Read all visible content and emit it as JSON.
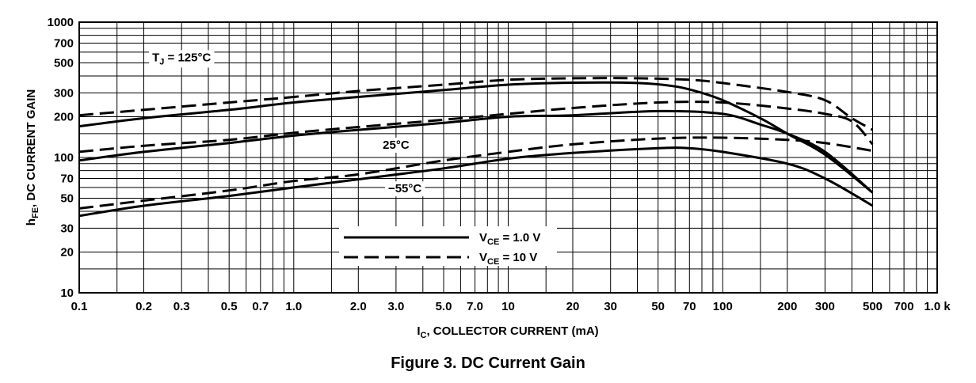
{
  "caption": "Figure 3. DC Current Gain",
  "chart_data": {
    "type": "line",
    "title": "",
    "x_scale": "log",
    "y_scale": "log",
    "xlim": [
      0.1,
      1000
    ],
    "ylim": [
      10,
      1000
    ],
    "grid": true,
    "xlabel": {
      "main": "I",
      "sub": "C",
      "rest": ", COLLECTOR CURRENT (mA)"
    },
    "ylabel": {
      "main": "h",
      "sub": "FE",
      "rest": ", DC CURRENT GAIN"
    },
    "x_ticks": [
      {
        "value": 0.1,
        "label": "0.1"
      },
      {
        "value": 0.2,
        "label": "0.2"
      },
      {
        "value": 0.3,
        "label": "0.3"
      },
      {
        "value": 0.5,
        "label": "0.5"
      },
      {
        "value": 0.7,
        "label": "0.7"
      },
      {
        "value": 1,
        "label": "1.0"
      },
      {
        "value": 2,
        "label": "2.0"
      },
      {
        "value": 3,
        "label": "3.0"
      },
      {
        "value": 5,
        "label": "5.0"
      },
      {
        "value": 7,
        "label": "7.0"
      },
      {
        "value": 10,
        "label": "10"
      },
      {
        "value": 20,
        "label": "20"
      },
      {
        "value": 30,
        "label": "30"
      },
      {
        "value": 50,
        "label": "50"
      },
      {
        "value": 70,
        "label": "70"
      },
      {
        "value": 100,
        "label": "100"
      },
      {
        "value": 200,
        "label": "200"
      },
      {
        "value": 300,
        "label": "300"
      },
      {
        "value": 500,
        "label": "500"
      },
      {
        "value": 700,
        "label": "700"
      },
      {
        "value": 1000,
        "label": "1.0 k"
      }
    ],
    "y_ticks": [
      {
        "value": 10,
        "label": "10"
      },
      {
        "value": 20,
        "label": "20"
      },
      {
        "value": 30,
        "label": "30"
      },
      {
        "value": 50,
        "label": "50"
      },
      {
        "value": 70,
        "label": "70"
      },
      {
        "value": 100,
        "label": "100"
      },
      {
        "value": 200,
        "label": "200"
      },
      {
        "value": 300,
        "label": "300"
      },
      {
        "value": 500,
        "label": "500"
      },
      {
        "value": 700,
        "label": "700"
      },
      {
        "value": 1000,
        "label": "1000"
      }
    ],
    "legend": {
      "placement": "bottom-center",
      "entries": [
        {
          "main": "V",
          "sub": "CE",
          "rest": " = 1.0 V",
          "style": "solid"
        },
        {
          "main": "V",
          "sub": "CE",
          "rest": " = 10 V",
          "style": "dashed"
        }
      ]
    },
    "annotations": [
      {
        "main": "T",
        "sub": "J",
        "rest": " = 125°C",
        "at": [
          0.3,
          550
        ]
      },
      {
        "main": "25°C",
        "sub": "",
        "rest": "",
        "at": [
          3,
          124
        ]
      },
      {
        "main": "−55°C",
        "sub": "",
        "rest": "",
        "at": [
          3.3,
          59
        ]
      }
    ],
    "series": [
      {
        "temperature": "125°C",
        "vce": "1.0 V",
        "style": "solid",
        "x": [
          0.1,
          0.2,
          0.5,
          1,
          2,
          5,
          10,
          20,
          40,
          60,
          80,
          100,
          150,
          200,
          300,
          500
        ],
        "y": [
          170,
          195,
          225,
          255,
          280,
          315,
          345,
          357,
          355,
          335,
          300,
          265,
          195,
          150,
          105,
          55
        ]
      },
      {
        "temperature": "125°C",
        "vce": "10 V",
        "style": "dashed",
        "x": [
          0.1,
          0.2,
          0.5,
          1,
          2,
          5,
          10,
          20,
          40,
          70,
          100,
          200,
          300,
          400,
          500
        ],
        "y": [
          205,
          225,
          255,
          280,
          310,
          345,
          375,
          385,
          385,
          375,
          355,
          305,
          265,
          195,
          160
        ]
      },
      {
        "temperature": "25°C",
        "vce": "1.0 V",
        "style": "solid",
        "x": [
          0.1,
          0.2,
          0.5,
          1,
          2,
          5,
          10,
          20,
          50,
          100,
          150,
          200,
          300,
          500
        ],
        "y": [
          95,
          110,
          128,
          145,
          160,
          180,
          200,
          205,
          220,
          210,
          175,
          150,
          110,
          55
        ]
      },
      {
        "temperature": "25°C",
        "vce": "10 V",
        "style": "dashed",
        "x": [
          0.1,
          0.2,
          0.5,
          1,
          2,
          5,
          10,
          20,
          50,
          100,
          200,
          300,
          400,
          500
        ],
        "y": [
          110,
          122,
          135,
          152,
          168,
          190,
          210,
          232,
          255,
          255,
          230,
          210,
          185,
          125
        ]
      },
      {
        "temperature": "−55°C",
        "vce": "1.0 V",
        "style": "solid",
        "x": [
          0.1,
          0.2,
          0.5,
          1,
          2,
          5,
          10,
          20,
          50,
          70,
          100,
          200,
          300,
          500
        ],
        "y": [
          37,
          44,
          52,
          60,
          69,
          83,
          98,
          108,
          117,
          117,
          110,
          90,
          70,
          44
        ]
      },
      {
        "temperature": "−55°C",
        "vce": "10 V",
        "style": "dashed",
        "x": [
          0.1,
          0.2,
          0.5,
          1,
          2,
          5,
          10,
          20,
          50,
          100,
          200,
          300,
          500
        ],
        "y": [
          42,
          48,
          57,
          67,
          75,
          95,
          110,
          125,
          138,
          140,
          135,
          128,
          112
        ]
      }
    ]
  }
}
